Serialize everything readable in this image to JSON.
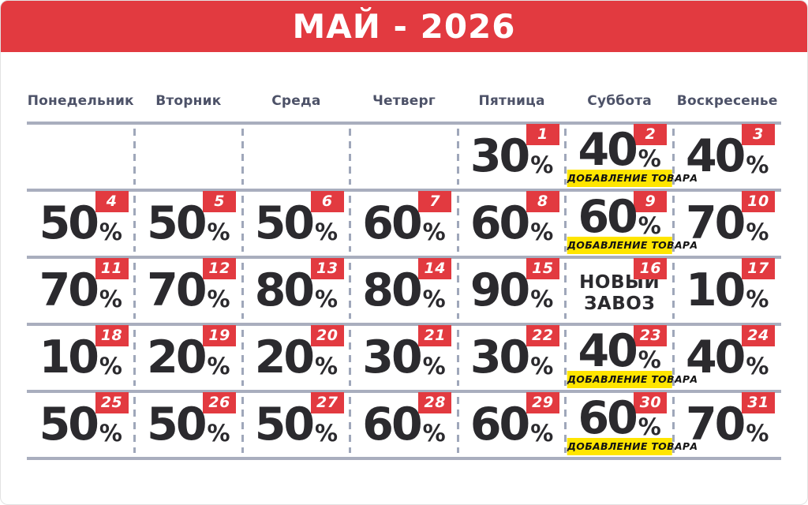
{
  "header": {
    "title": "МАЙ - 2026"
  },
  "weekdays": [
    "Понедельник",
    "Вторник",
    "Среда",
    "Четверг",
    "Пятница",
    "Суббота",
    "Воскресенье"
  ],
  "labels": {
    "restock": "ДОБАВЛЕНИЕ ТОВАРА",
    "percent_suffix": "%"
  },
  "colors": {
    "accent_red": "#e23a40",
    "weekday_text": "#4d5268",
    "solid_line": "#a9aebe",
    "dashed_line": "#9fa7ba",
    "ink": "#2b2a2e",
    "highlight_yellow": "#ffe500",
    "badge_text": "#ffffff"
  },
  "calendar": {
    "month": "МАЙ",
    "year": "2026",
    "weeks": [
      [
        null,
        null,
        null,
        null,
        {
          "day": 1,
          "percent": "30"
        },
        {
          "day": 2,
          "percent": "40",
          "restock": true
        },
        {
          "day": 3,
          "percent": "40"
        }
      ],
      [
        {
          "day": 4,
          "percent": "50"
        },
        {
          "day": 5,
          "percent": "50"
        },
        {
          "day": 6,
          "percent": "50"
        },
        {
          "day": 7,
          "percent": "60"
        },
        {
          "day": 8,
          "percent": "60"
        },
        {
          "day": 9,
          "percent": "60",
          "restock": true
        },
        {
          "day": 10,
          "percent": "70"
        }
      ],
      [
        {
          "day": 11,
          "percent": "70"
        },
        {
          "day": 12,
          "percent": "70"
        },
        {
          "day": 13,
          "percent": "80"
        },
        {
          "day": 14,
          "percent": "80"
        },
        {
          "day": 15,
          "percent": "90"
        },
        {
          "day": 16,
          "note": [
            "НОВЫЙ",
            "ЗАВОЗ"
          ]
        },
        {
          "day": 17,
          "percent": "10"
        }
      ],
      [
        {
          "day": 18,
          "percent": "10"
        },
        {
          "day": 19,
          "percent": "20"
        },
        {
          "day": 20,
          "percent": "20"
        },
        {
          "day": 21,
          "percent": "30"
        },
        {
          "day": 22,
          "percent": "30"
        },
        {
          "day": 23,
          "percent": "40",
          "restock": true
        },
        {
          "day": 24,
          "percent": "40"
        }
      ],
      [
        {
          "day": 25,
          "percent": "50"
        },
        {
          "day": 26,
          "percent": "50"
        },
        {
          "day": 27,
          "percent": "50"
        },
        {
          "day": 28,
          "percent": "60"
        },
        {
          "day": 29,
          "percent": "60"
        },
        {
          "day": 30,
          "percent": "60",
          "restock": true
        },
        {
          "day": 31,
          "percent": "70"
        }
      ]
    ]
  }
}
